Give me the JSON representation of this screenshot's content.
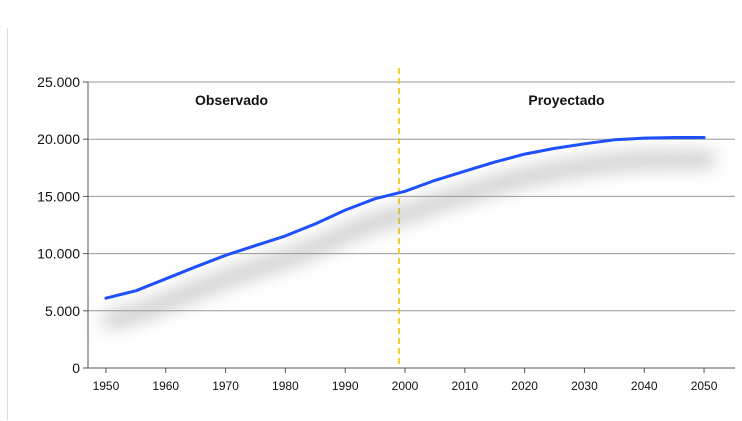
{
  "chart_data": {
    "type": "line",
    "title": "",
    "xlabel": "",
    "ylabel": "",
    "xlim": [
      1947,
      2053
    ],
    "ylim": [
      0,
      25000
    ],
    "y_ticks": [
      0,
      5000,
      10000,
      15000,
      20000,
      25000
    ],
    "y_tick_labels": [
      "0",
      "5.000",
      "10.000",
      "15.000",
      "20.000",
      "25.000"
    ],
    "x_ticks": [
      1950,
      1960,
      1970,
      1980,
      1990,
      2000,
      2010,
      2020,
      2030,
      2040,
      2050
    ],
    "x_tick_labels": [
      "1950",
      "1960",
      "1970",
      "1980",
      "1990",
      "2000",
      "2010",
      "2020",
      "2030",
      "2040",
      "2050"
    ],
    "grid": "horizontal",
    "divider_x": 1999,
    "annotations": {
      "observed": "Observado",
      "projected": "Proyectado"
    },
    "colors": {
      "line": "#1f4fff",
      "divider": "#f2c200",
      "grid": "#999999",
      "axis": "#555555"
    },
    "series": [
      {
        "x": [
          1950,
          1955,
          1960,
          1965,
          1970,
          1975,
          1980,
          1985,
          1990,
          1995,
          2000,
          2005,
          2010,
          2015,
          2020,
          2025,
          2030,
          2035,
          2040,
          2045,
          2050
        ],
        "values": [
          6100,
          6750,
          7800,
          8850,
          9850,
          10700,
          11550,
          12600,
          13800,
          14800,
          15450,
          16400,
          17200,
          18000,
          18700,
          19200,
          19600,
          19950,
          20100,
          20150,
          20150
        ]
      }
    ]
  }
}
